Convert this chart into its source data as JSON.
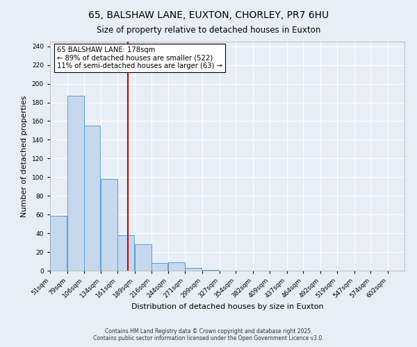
{
  "title": "65, BALSHAW LANE, EUXTON, CHORLEY, PR7 6HU",
  "subtitle": "Size of property relative to detached houses in Euxton",
  "xlabel": "Distribution of detached houses by size in Euxton",
  "ylabel": "Number of detached properties",
  "bin_labels": [
    "51sqm",
    "79sqm",
    "106sqm",
    "134sqm",
    "161sqm",
    "189sqm",
    "216sqm",
    "244sqm",
    "271sqm",
    "299sqm",
    "327sqm",
    "354sqm",
    "382sqm",
    "409sqm",
    "437sqm",
    "464sqm",
    "492sqm",
    "519sqm",
    "547sqm",
    "574sqm",
    "602sqm"
  ],
  "bin_edges": [
    51,
    79,
    106,
    134,
    161,
    189,
    216,
    244,
    271,
    299,
    327,
    354,
    382,
    409,
    437,
    464,
    492,
    519,
    547,
    574,
    602
  ],
  "bar_heights": [
    59,
    187,
    155,
    98,
    38,
    28,
    8,
    9,
    3,
    1,
    0,
    0,
    0,
    0,
    0,
    0,
    0,
    0,
    0,
    0
  ],
  "bar_color": "#c5d8ed",
  "bar_edge_color": "#5b9bd5",
  "vline_x": 178,
  "vline_color": "#cc0000",
  "annotation_title": "65 BALSHAW LANE: 178sqm",
  "annotation_line1": "← 89% of detached houses are smaller (522)",
  "annotation_line2": "11% of semi-detached houses are larger (63) →",
  "annotation_box_color": "#ffffff",
  "annotation_box_edge": "#000000",
  "ylim": [
    0,
    245
  ],
  "yticks": [
    0,
    20,
    40,
    60,
    80,
    100,
    120,
    140,
    160,
    180,
    200,
    220,
    240
  ],
  "footer1": "Contains HM Land Registry data © Crown copyright and database right 2025.",
  "footer2": "Contains public sector information licensed under the Open Government Licence v3.0.",
  "bg_color": "#e8eef5",
  "plot_bg_color": "#e8eef5"
}
